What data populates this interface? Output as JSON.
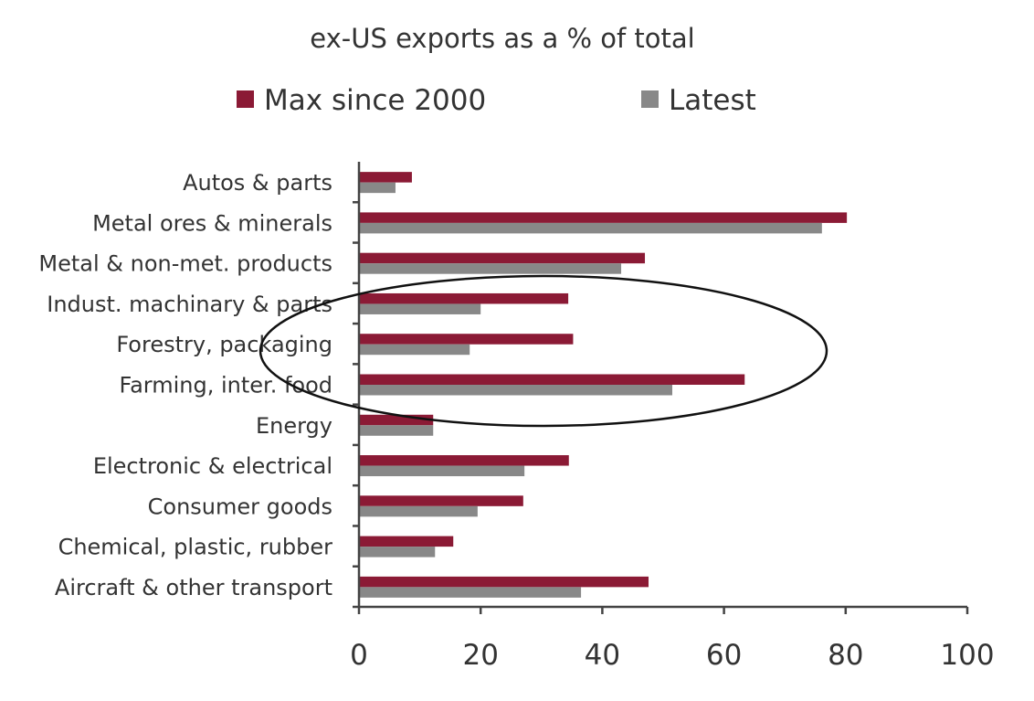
{
  "chart_data": {
    "type": "bar",
    "orientation": "horizontal",
    "title": "ex-US exports as a % of total",
    "xlabel": "",
    "ylabel": "",
    "xlim": [
      0,
      100
    ],
    "xticks": [
      "0",
      "20",
      "40",
      "60",
      "80",
      "100"
    ],
    "grid": false,
    "legend_position": "top",
    "categories": [
      "Autos & parts",
      "Metal ores & minerals",
      "Metal & non-met. products",
      "Indust. machinary & parts",
      "Forestry, packaging",
      "Farming, inter. food",
      "Energy",
      "Electronic & electrical",
      "Consumer goods",
      "Chemical, plastic, rubber",
      "Aircraft & other transport"
    ],
    "series": [
      {
        "name": "Max since 2000",
        "color": "#8B1A35",
        "values": [
          8.7,
          80.2,
          47.0,
          34.4,
          35.2,
          63.4,
          12.2,
          34.5,
          27.0,
          15.5,
          47.6
        ]
      },
      {
        "name": "Latest",
        "color": "#888888",
        "values": [
          6.0,
          76.1,
          43.1,
          20.0,
          18.2,
          51.5,
          12.2,
          27.2,
          19.5,
          12.5,
          36.5
        ]
      }
    ],
    "annotation": "ellipse highlighting Indust. machinary & parts, Forestry, packaging, Farming, inter. food"
  }
}
